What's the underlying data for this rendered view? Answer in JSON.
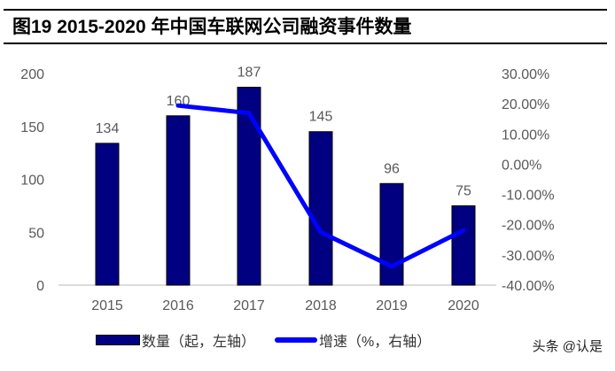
{
  "title": "图19 2015-2020 年中国车联网公司融资事件数量",
  "legend": {
    "bar_label": "数量（起，左轴）",
    "line_label": "增速（%，右轴）"
  },
  "watermark": "头条 @认是",
  "colors": {
    "bar": "#000080",
    "line": "#0000ff",
    "axis_text": "#595959"
  },
  "chart_data": {
    "type": "bar+line",
    "title": "图19 2015-2020 年中国车联网公司融资事件数量",
    "categories": [
      "2015",
      "2016",
      "2017",
      "2018",
      "2019",
      "2020"
    ],
    "series": [
      {
        "name": "数量（起，左轴）",
        "type": "bar",
        "axis": "left",
        "values": [
          134,
          160,
          187,
          145,
          96,
          75
        ]
      },
      {
        "name": "增速（%，右轴）",
        "type": "line",
        "axis": "right",
        "values": [
          null,
          19.4,
          16.9,
          -22.5,
          -33.8,
          -21.9
        ]
      }
    ],
    "left_axis": {
      "ticks": [
        "0",
        "50",
        "100",
        "150",
        "200"
      ],
      "ylim": [
        0,
        200
      ]
    },
    "right_axis": {
      "ticks": [
        "-40.00%",
        "-30.00%",
        "-20.00%",
        "-10.00%",
        "0.00%",
        "10.00%",
        "20.00%",
        "30.00%"
      ],
      "ylim": [
        -40,
        30
      ]
    },
    "xlabel": "",
    "ylabel": "",
    "grid": false,
    "legend_position": "bottom"
  }
}
